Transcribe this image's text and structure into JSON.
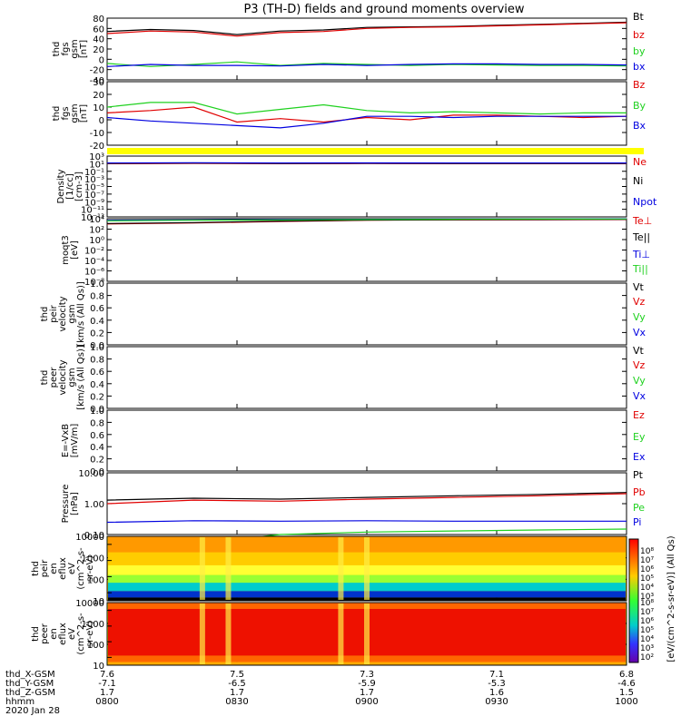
{
  "title": "P3 (TH-D) fields and ground moments overview",
  "colors": {
    "black": "#000000",
    "red": "#e00000",
    "green": "#1fd11f",
    "blue": "#0000e0",
    "yellow": "#ffff00"
  },
  "chart_data": [
    {
      "type": "line",
      "id": "p1",
      "ylabel": [
        "thd",
        "fgs",
        "gsm",
        "[nT]"
      ],
      "ylim": [
        -40,
        80
      ],
      "yticks": [
        "80",
        "60",
        "40",
        "20",
        "0",
        "-20",
        "-40"
      ],
      "legend": [
        {
          "text": "Bt",
          "color": "#000000"
        },
        {
          "text": "bz",
          "color": "#e00000"
        },
        {
          "text": "by",
          "color": "#1fd11f"
        },
        {
          "text": "bx",
          "color": "#0000e0"
        }
      ],
      "series": [
        {
          "name": "Bt",
          "color": "#000000",
          "x": [
            0,
            10,
            20,
            30,
            40,
            50,
            60,
            70,
            80,
            90,
            100,
            110,
            120
          ],
          "y": [
            54,
            58,
            56,
            48,
            55,
            57,
            62,
            63,
            64,
            66,
            68,
            70,
            72
          ]
        },
        {
          "name": "bz",
          "color": "#e00000",
          "x": [
            0,
            10,
            20,
            30,
            40,
            50,
            60,
            70,
            80,
            90,
            100,
            110,
            120
          ],
          "y": [
            50,
            55,
            53,
            45,
            52,
            54,
            60,
            62,
            63,
            65,
            67,
            69,
            71
          ]
        },
        {
          "name": "by",
          "color": "#1fd11f",
          "x": [
            0,
            10,
            20,
            30,
            40,
            50,
            60,
            70,
            80,
            90,
            100,
            110,
            120
          ],
          "y": [
            -8,
            -14,
            -10,
            -5,
            -12,
            -8,
            -10,
            -12,
            -10,
            -11,
            -12,
            -12,
            -13
          ]
        },
        {
          "name": "bx",
          "color": "#0000e0",
          "x": [
            0,
            10,
            20,
            30,
            40,
            50,
            60,
            70,
            80,
            90,
            100,
            110,
            120
          ],
          "y": [
            -14,
            -10,
            -12,
            -12,
            -13,
            -10,
            -12,
            -10,
            -9,
            -9,
            -10,
            -10,
            -11
          ]
        }
      ]
    },
    {
      "type": "line",
      "id": "p2",
      "ylabel": [
        "thd",
        "fgs",
        "gsm",
        "[nT]"
      ],
      "ylim": [
        -25,
        30
      ],
      "yticks": [
        "30",
        "20",
        "10",
        "0",
        "-10",
        "-20"
      ],
      "legend": [
        {
          "text": "Bz",
          "color": "#e00000"
        },
        {
          "text": "By",
          "color": "#1fd11f"
        },
        {
          "text": "Bx",
          "color": "#0000e0"
        }
      ],
      "series": [
        {
          "name": "Bz",
          "color": "#e00000",
          "x": [
            0,
            10,
            20,
            30,
            40,
            50,
            60,
            70,
            80,
            90,
            100,
            110,
            120
          ],
          "y": [
            3,
            5,
            8,
            -5,
            -2,
            -5,
            -1,
            -3,
            1,
            1,
            0,
            -1,
            0
          ]
        },
        {
          "name": "By",
          "color": "#1fd11f",
          "x": [
            0,
            10,
            20,
            30,
            40,
            50,
            60,
            70,
            80,
            90,
            100,
            110,
            120
          ],
          "y": [
            8,
            12,
            12,
            2,
            6,
            10,
            5,
            3,
            4,
            3,
            2,
            3,
            3
          ]
        },
        {
          "name": "Bx",
          "color": "#0000e0",
          "x": [
            0,
            10,
            20,
            30,
            40,
            50,
            60,
            70,
            80,
            90,
            100,
            110,
            120
          ],
          "y": [
            -1,
            -4,
            -6,
            -8,
            -10,
            -6,
            0,
            0,
            -1,
            0,
            0,
            0,
            0
          ]
        }
      ]
    },
    {
      "type": "line",
      "id": "p3",
      "ylabel": [
        "Density",
        "[1/cc]",
        "[cm-3]"
      ],
      "ylog": true,
      "yticks": [
        "10³",
        "10¹",
        "10⁻¹",
        "10⁻³",
        "10⁻⁵",
        "10⁻⁷",
        "10⁻⁹",
        "10⁻¹¹",
        "10⁻¹³"
      ],
      "legend": [
        {
          "text": "Ne",
          "color": "#e00000"
        },
        {
          "text": "Ni",
          "color": "#000000"
        },
        {
          "text": "Npot",
          "color": "#0000e0"
        }
      ],
      "series": [
        {
          "name": "Ne",
          "color": "#e00000",
          "x": [
            0,
            20,
            40,
            60,
            80,
            100,
            120
          ],
          "y": [
            10,
            12,
            10,
            11,
            10,
            10,
            10
          ]
        },
        {
          "name": "Ni",
          "color": "#000000",
          "x": [
            0,
            20,
            40,
            60,
            80,
            100,
            120
          ],
          "y": [
            12,
            15,
            12,
            13,
            12,
            12,
            12
          ]
        },
        {
          "name": "Npot",
          "color": "#0000e0",
          "x": [
            0,
            20,
            40,
            60,
            80,
            100,
            120
          ],
          "y": [
            15,
            18,
            15,
            16,
            15,
            15,
            15
          ]
        }
      ]
    },
    {
      "type": "line",
      "id": "p4",
      "ylabel": [
        "moqt3",
        "[eV]"
      ],
      "ylog": true,
      "yticks": [
        "10⁴",
        "10²",
        "10⁰",
        "10⁻²",
        "10⁻⁴",
        "10⁻⁶",
        "10⁻⁸"
      ],
      "legend": [
        {
          "text": "Te⊥",
          "color": "#e00000"
        },
        {
          "text": "Te||",
          "color": "#000000"
        },
        {
          "text": "Ti⊥",
          "color": "#0000e0"
        },
        {
          "text": "Ti||",
          "color": "#1fd11f"
        }
      ],
      "series": [
        {
          "name": "Te⊥",
          "color": "#e00000",
          "x": [
            0,
            20,
            40,
            60,
            80,
            100,
            120
          ],
          "y": [
            1000,
            1500,
            3000,
            5000,
            6000,
            6500,
            7000
          ]
        },
        {
          "name": "Te||",
          "color": "#000000",
          "x": [
            0,
            20,
            40,
            60,
            80,
            100,
            120
          ],
          "y": [
            1200,
            1800,
            3500,
            5500,
            6500,
            7000,
            7500
          ]
        },
        {
          "name": "Ti⊥",
          "color": "#0000e0",
          "x": [
            0,
            20,
            40,
            60,
            80,
            100,
            120
          ],
          "y": [
            5000,
            6000,
            7000,
            8000,
            9000,
            9000,
            9500
          ]
        },
        {
          "name": "Ti||",
          "color": "#1fd11f",
          "x": [
            0,
            20,
            40,
            60,
            80,
            100,
            120
          ],
          "y": [
            4000,
            5000,
            6000,
            7000,
            8000,
            8500,
            9000
          ]
        }
      ]
    },
    {
      "type": "line",
      "id": "p5",
      "ylabel": [
        "thd",
        "peir",
        "velocity",
        "gsm",
        "[km/s (All Qs)]"
      ],
      "ylim": [
        0,
        1
      ],
      "yticks": [
        "1.0",
        "0.8",
        "0.6",
        "0.4",
        "0.2",
        "0.0"
      ],
      "legend": [
        {
          "text": "Vt",
          "color": "#000000"
        },
        {
          "text": "Vz",
          "color": "#e00000"
        },
        {
          "text": "Vy",
          "color": "#1fd11f"
        },
        {
          "text": "Vx",
          "color": "#0000e0"
        }
      ],
      "series": []
    },
    {
      "type": "line",
      "id": "p6",
      "ylabel": [
        "thd",
        "peer",
        "velocity",
        "gsm",
        "[km/s (All Qs)]"
      ],
      "ylim": [
        0,
        1
      ],
      "yticks": [
        "1.0",
        "0.8",
        "0.6",
        "0.4",
        "0.2",
        "0.0"
      ],
      "legend": [
        {
          "text": "Vt",
          "color": "#000000"
        },
        {
          "text": "Vz",
          "color": "#e00000"
        },
        {
          "text": "Vy",
          "color": "#1fd11f"
        },
        {
          "text": "Vx",
          "color": "#0000e0"
        }
      ],
      "series": []
    },
    {
      "type": "line",
      "id": "p7",
      "ylabel": [
        "E=-VxB",
        "[mV/m]"
      ],
      "ylim": [
        0,
        1
      ],
      "yticks": [
        "1.0",
        "0.8",
        "0.6",
        "0.4",
        "0.2",
        "0.0"
      ],
      "legend": [
        {
          "text": "Ez",
          "color": "#e00000"
        },
        {
          "text": "Ey",
          "color": "#1fd11f"
        },
        {
          "text": "Ex",
          "color": "#0000e0"
        }
      ],
      "series": []
    },
    {
      "type": "line",
      "id": "p8",
      "ylabel": [
        "Pressure",
        "[nPa]"
      ],
      "ylog": true,
      "yticks": [
        "10.00",
        "1.00",
        "0.10"
      ],
      "legend": [
        {
          "text": "Pt",
          "color": "#000000"
        },
        {
          "text": "Pb",
          "color": "#e00000"
        },
        {
          "text": "Pe",
          "color": "#1fd11f"
        },
        {
          "text": "Pi",
          "color": "#0000e0"
        }
      ],
      "series": [
        {
          "name": "Pt",
          "color": "#000000",
          "x": [
            0,
            20,
            40,
            60,
            80,
            100,
            120
          ],
          "y": [
            1.3,
            1.5,
            1.4,
            1.6,
            1.8,
            2.0,
            2.3
          ]
        },
        {
          "name": "Pb",
          "color": "#e00000",
          "x": [
            0,
            20,
            40,
            60,
            80,
            100,
            120
          ],
          "y": [
            1.0,
            1.3,
            1.2,
            1.4,
            1.6,
            1.8,
            2.1
          ]
        },
        {
          "name": "Pe",
          "color": "#1fd11f",
          "x": [
            0,
            20,
            40,
            60,
            80,
            100,
            120
          ],
          "y": [
            0.06,
            0.05,
            0.1,
            0.12,
            0.13,
            0.14,
            0.15
          ]
        },
        {
          "name": "Pi",
          "color": "#0000e0",
          "x": [
            0,
            20,
            40,
            60,
            80,
            100,
            120
          ],
          "y": [
            0.25,
            0.28,
            0.27,
            0.28,
            0.27,
            0.27,
            0.27
          ]
        }
      ]
    },
    {
      "type": "heatmap",
      "id": "p9",
      "ylabel": [
        "thd",
        "peir",
        "en",
        "eflux",
        "eV",
        "(cm^2-s-",
        "sr-eV)"
      ],
      "ylog": true,
      "yticks": [
        "10000",
        "1000",
        "100",
        "10"
      ]
    },
    {
      "type": "heatmap",
      "id": "p10",
      "ylabel": [
        "thd",
        "peer",
        "en",
        "eflux",
        "eV",
        "(cm^2-s-",
        "sr-eV)"
      ],
      "ylog": true,
      "yticks": [
        "10000",
        "1000",
        "100",
        "10"
      ]
    }
  ],
  "colorbar": {
    "label": "[eV/(cm^2-s-sr-eV)] (All Qs)",
    "ticks_top": [
      "10⁸",
      "10⁷",
      "10⁶",
      "10⁵",
      "10⁴",
      "10³"
    ],
    "ticks_bottom": [
      "10⁸",
      "10⁷",
      "10⁶",
      "10⁵",
      "10⁴",
      "10³",
      "10²"
    ]
  },
  "xaxis": {
    "tick_minutes": [
      0,
      30,
      60,
      90,
      120
    ],
    "rows": [
      {
        "label": "thd_X-GSM",
        "values": [
          "7.6",
          "7.5",
          "7.3",
          "7.1",
          "6.8"
        ]
      },
      {
        "label": "thd_Y-GSM",
        "values": [
          "-7.1",
          "-6.5",
          "-5.9",
          "-5.3",
          "-4.6"
        ]
      },
      {
        "label": "thd_Z-GSM",
        "values": [
          "1.7",
          "1.7",
          "1.7",
          "1.6",
          "1.5"
        ]
      },
      {
        "label": "hhmm",
        "values": [
          "0800",
          "0830",
          "0900",
          "0930",
          "1000"
        ]
      }
    ],
    "date": "2020 Jan 28"
  }
}
